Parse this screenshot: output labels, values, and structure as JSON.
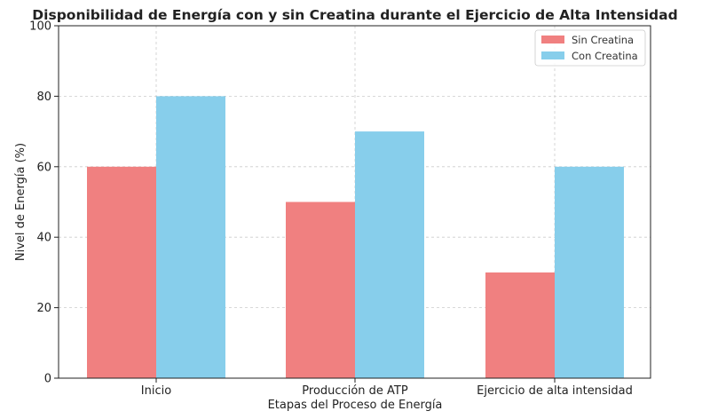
{
  "chart_data": {
    "type": "bar",
    "title": "Disponibilidad de Energía con y sin Creatina durante el Ejercicio de Alta Intensidad",
    "xlabel": "Etapas del Proceso de Energía",
    "ylabel": "Nivel de Energía (%)",
    "categories": [
      "Inicio",
      "Producción de ATP",
      "Ejercicio de alta intensidad"
    ],
    "series": [
      {
        "name": "Sin Creatina",
        "values": [
          60,
          50,
          30
        ],
        "color": "#f08080"
      },
      {
        "name": "Con Creatina",
        "values": [
          80,
          70,
          60
        ],
        "color": "#87ceeb"
      }
    ],
    "ylim": [
      0,
      100
    ],
    "yticks": [
      0,
      20,
      40,
      60,
      80,
      100
    ],
    "grid": true,
    "legend_position": "top-right"
  }
}
